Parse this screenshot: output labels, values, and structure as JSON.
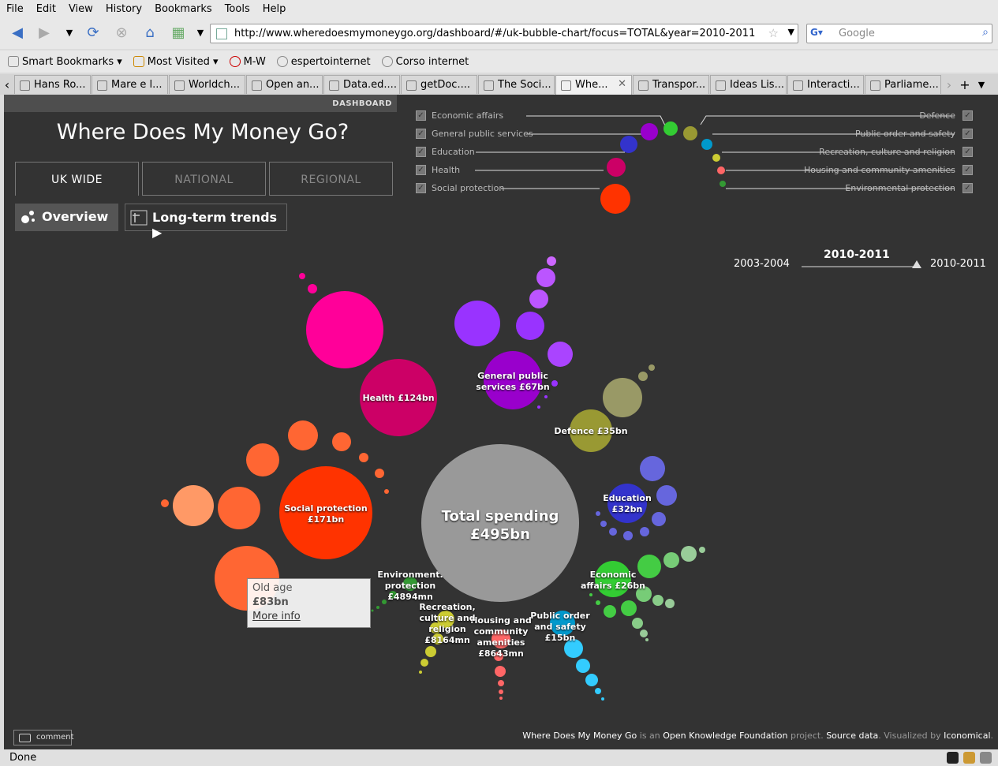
{
  "browser": {
    "menu": [
      "File",
      "Edit",
      "View",
      "History",
      "Bookmarks",
      "Tools",
      "Help"
    ],
    "url": "http://www.wheredoesmymoneygo.org/dashboard/#/uk-bubble-chart/focus=TOTAL&year=2010-2011",
    "search_placeholder": "Google",
    "bookmarks": [
      "Smart Bookmarks",
      "Most Visited",
      "M-W",
      "espertointernet",
      "Corso internet"
    ],
    "tabs": [
      "Hans Ro...",
      "Mare e l...",
      "Worldch...",
      "Open an...",
      "Data.ed....",
      "getDoc....",
      "The Soci...",
      "Whe...",
      "Transpor...",
      "Ideas Lis...",
      "Interacti...",
      "Parliame..."
    ],
    "active_tab": 7,
    "status": "Done"
  },
  "page": {
    "dashboard_tag": "DASHBOARD",
    "title": "Where Does My Money Go?",
    "region_tabs": [
      "UK WIDE",
      "NATIONAL",
      "REGIONAL"
    ],
    "views": [
      "Overview",
      "Long-term trends ▶"
    ],
    "legend_left": [
      "Economic affairs",
      "General public services",
      "Education",
      "Health",
      "Social protection"
    ],
    "legend_right": [
      "Defence",
      "Public order and safety",
      "Recreation, culture and religion",
      "Housing and community amenities",
      "Environmental protection"
    ],
    "timeline": {
      "start": "2003-2004",
      "current": "2010-2011",
      "end": "2010-2011"
    },
    "tooltip": {
      "title": "Old age",
      "value": "£83bn",
      "link": "More info"
    },
    "comment": "comment",
    "footer": {
      "a": "Where Does My Money Go",
      "b": " is an ",
      "c": "Open Knowledge Foundation",
      "d": " project. ",
      "e": "Source data",
      "f": ". Visualized by ",
      "g": "Iconomical",
      "h": "."
    }
  },
  "chart_data": {
    "type": "bubble",
    "center": {
      "label1": "Total spending",
      "label2": "£495bn",
      "color": "#999999"
    },
    "categories": [
      {
        "name": "Social protection",
        "label1": "Social protection",
        "label2": "£171bn",
        "color": "#ff3300"
      },
      {
        "name": "Health",
        "label1": "Health £124bn",
        "label2": "",
        "color": "#cc0066"
      },
      {
        "name": "General public services",
        "label1": "General public",
        "label2": "services £67bn",
        "color": "#9900cc"
      },
      {
        "name": "Defence",
        "label1": "Defence £35bn",
        "label2": "",
        "color": "#999933"
      },
      {
        "name": "Education",
        "label1": "Education",
        "label2": "£32bn",
        "color": "#3333cc"
      },
      {
        "name": "Economic affairs",
        "label1": "Economic",
        "label2": "affairs £26bn",
        "color": "#33cc33"
      },
      {
        "name": "Public order and safety",
        "label1": "Public order",
        "label2": "and safety",
        "label3": "£15bn",
        "color": "#0099cc"
      },
      {
        "name": "Housing and community amenities",
        "label1": "Housing and",
        "label2": "community",
        "label3": "amenities",
        "label4": "£8643mn",
        "color": "#ff6666"
      },
      {
        "name": "Recreation, culture and religion",
        "label1": "Recreation,",
        "label2": "culture and",
        "label3": "religion",
        "label4": "£8164mn",
        "color": "#cccc33"
      },
      {
        "name": "Environmental protection",
        "label1": "Environment.",
        "label2": "protection",
        "label3": "£4894mn",
        "color": "#339933"
      }
    ]
  }
}
